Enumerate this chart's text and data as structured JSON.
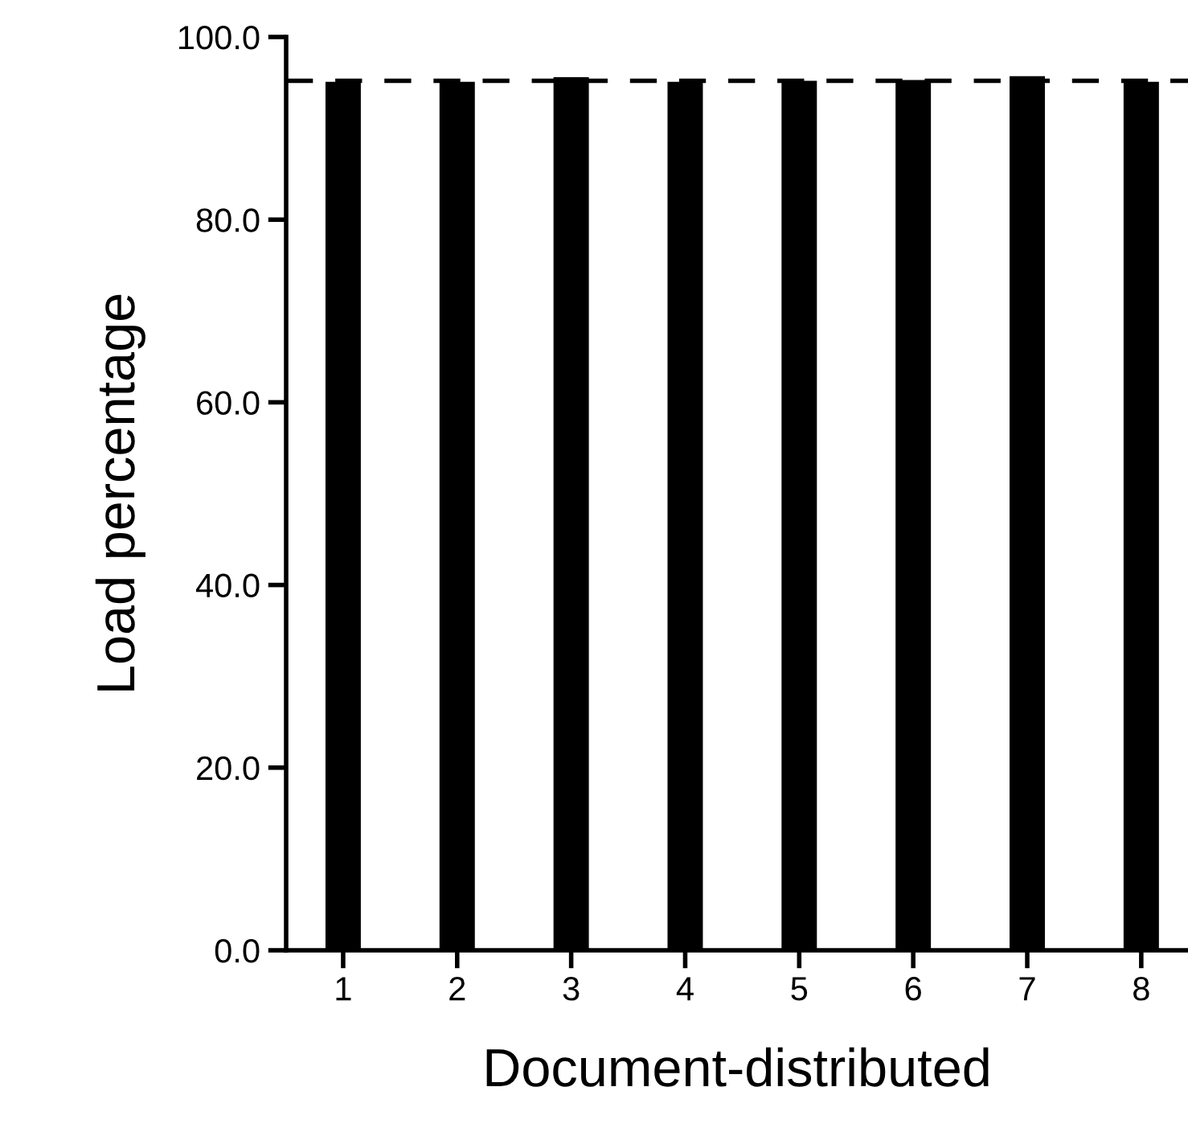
{
  "chart_data": {
    "type": "bar",
    "xlabel": "Document-distributed",
    "ylabel": "Load percentage",
    "categories": [
      "1",
      "2",
      "3",
      "4",
      "5",
      "6",
      "7",
      "8"
    ],
    "values": [
      95.1,
      95.1,
      95.6,
      95.1,
      95.2,
      95.3,
      95.7,
      95.1
    ],
    "color": "#000000",
    "ylim": [
      0,
      100
    ],
    "yticks": [
      {
        "value": 0,
        "label": "0.0"
      },
      {
        "value": 20,
        "label": "20.0"
      },
      {
        "value": 40,
        "label": "40.0"
      },
      {
        "value": 60,
        "label": "60.0"
      },
      {
        "value": 80,
        "label": "80.0"
      },
      {
        "value": 100,
        "label": "100.0"
      }
    ],
    "ref_lines": [
      {
        "axis": "y",
        "value": 95.2,
        "color": "#000000",
        "line_style": "dashed"
      }
    ],
    "grid": false
  }
}
